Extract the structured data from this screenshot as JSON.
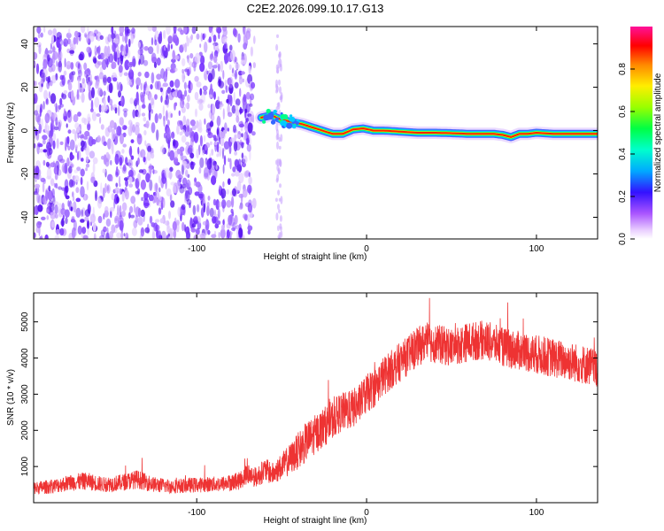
{
  "figure_title": "C2E2.2026.099.10.17.G13",
  "chart_data": [
    {
      "type": "heatmap",
      "xlabel": "Height of straight line (km)",
      "ylabel": "Frequency (Hz)",
      "xlim": [
        -196,
        136
      ],
      "ylim": [
        -50,
        48
      ],
      "xticks": [
        -100,
        0,
        100
      ],
      "xtick_labels": [
        "-100",
        "0",
        "100"
      ],
      "yticks": [
        -40,
        -20,
        0,
        20,
        40
      ],
      "ytick_labels": [
        "-40",
        "-20",
        "0",
        "20",
        "40"
      ],
      "colorbar": {
        "label": "Normalized spectral amplitude",
        "range": [
          0,
          1
        ],
        "ticks": [
          0,
          0.2,
          0.4,
          0.6,
          0.8
        ],
        "tick_labels": [
          "0.0",
          "0.2",
          "0.4",
          "0.6",
          "0.8"
        ]
      },
      "noise_region_x": [
        -196,
        -66
      ],
      "signal_track": {
        "x": [
          -62,
          -56,
          -50,
          -44,
          -38,
          -32,
          -26,
          -20,
          -14,
          -8,
          -2,
          4,
          10,
          20,
          30,
          40,
          50,
          60,
          70,
          75,
          80,
          85,
          90,
          95,
          100,
          110,
          120,
          130,
          136
        ],
        "freq": [
          6,
          7,
          5,
          4,
          3,
          1.5,
          0,
          -1.5,
          -1.5,
          0.5,
          1,
          0,
          0,
          -0.5,
          -1,
          -1,
          -1.2,
          -1.5,
          -1.5,
          -1.5,
          -2,
          -3,
          -1.5,
          -1.5,
          -1,
          -1.5,
          -1.5,
          -1.5,
          -1.5
        ]
      }
    },
    {
      "type": "line",
      "xlabel": "Height of straight line (km)",
      "ylabel": "SNR (10 * v/v)",
      "xlim": [
        -196,
        136
      ],
      "ylim": [
        0,
        5800
      ],
      "xticks": [
        -100,
        0,
        100
      ],
      "xtick_labels": [
        "-100",
        "0",
        "100"
      ],
      "yticks": [
        1000,
        2000,
        3000,
        4000,
        5000
      ],
      "ytick_labels": [
        "1000",
        "2000",
        "3000",
        "4000",
        "5000"
      ],
      "color": "#ee3333",
      "series": [
        {
          "name": "SNR",
          "x": [
            -196,
            -185,
            -175,
            -165,
            -155,
            -145,
            -135,
            -125,
            -115,
            -105,
            -95,
            -85,
            -75,
            -70,
            -65,
            -60,
            -55,
            -50,
            -45,
            -40,
            -35,
            -30,
            -25,
            -20,
            -15,
            -10,
            -5,
            0,
            5,
            10,
            15,
            20,
            25,
            30,
            35,
            40,
            50,
            60,
            70,
            80,
            90,
            100,
            110,
            120,
            130,
            136
          ],
          "y": [
            400,
            450,
            550,
            600,
            500,
            550,
            650,
            500,
            450,
            480,
            500,
            520,
            600,
            800,
            700,
            900,
            800,
            1000,
            1200,
            1450,
            1700,
            1900,
            2100,
            2300,
            2500,
            2550,
            2700,
            3000,
            3200,
            3500,
            3700,
            3900,
            4100,
            4300,
            4450,
            4400,
            4300,
            4450,
            4500,
            4300,
            4200,
            4100,
            4000,
            3900,
            3800,
            3700
          ]
        }
      ]
    }
  ]
}
